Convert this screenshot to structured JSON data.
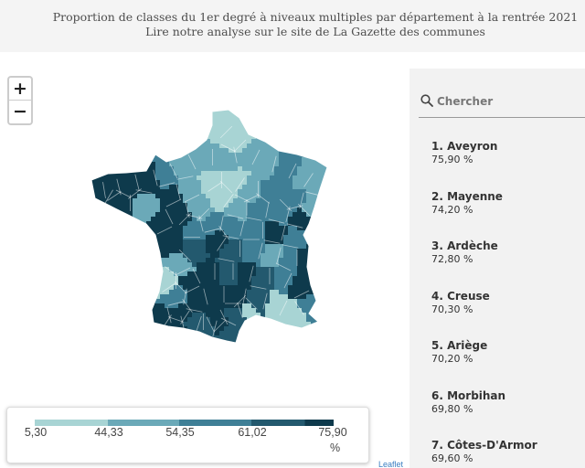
{
  "header": {
    "title": "Proportion de classes du 1er degré à niveaux multiples par département à la rentrée 2021",
    "subtitle": "Lire notre analyse sur le site de La Gazette des communes"
  },
  "zoom": {
    "in_label": "+",
    "out_label": "−"
  },
  "colors": {
    "scale": [
      "#a8d4d4",
      "#6ba9b8",
      "#3f7f96",
      "#23596e",
      "#0e3a4c"
    ],
    "border": "#ffffff"
  },
  "legend": {
    "ticks": [
      "5,30",
      "44,33",
      "54,35",
      "61,02",
      "75,90"
    ],
    "unit": "%"
  },
  "attribution": "Leaflet",
  "search": {
    "placeholder": "Chercher"
  },
  "ranking": [
    {
      "title": "1. Aveyron",
      "value": "75,90 %"
    },
    {
      "title": "2. Mayenne",
      "value": "74,20 %"
    },
    {
      "title": "3. Ardèche",
      "value": "72,80 %"
    },
    {
      "title": "4. Creuse",
      "value": "70,30 %"
    },
    {
      "title": "5. Ariège",
      "value": "70,20 %"
    },
    {
      "title": "6. Morbihan",
      "value": "69,80 %"
    },
    {
      "title": "7. Côtes-D'Armor",
      "value": "69,60 %"
    }
  ]
}
